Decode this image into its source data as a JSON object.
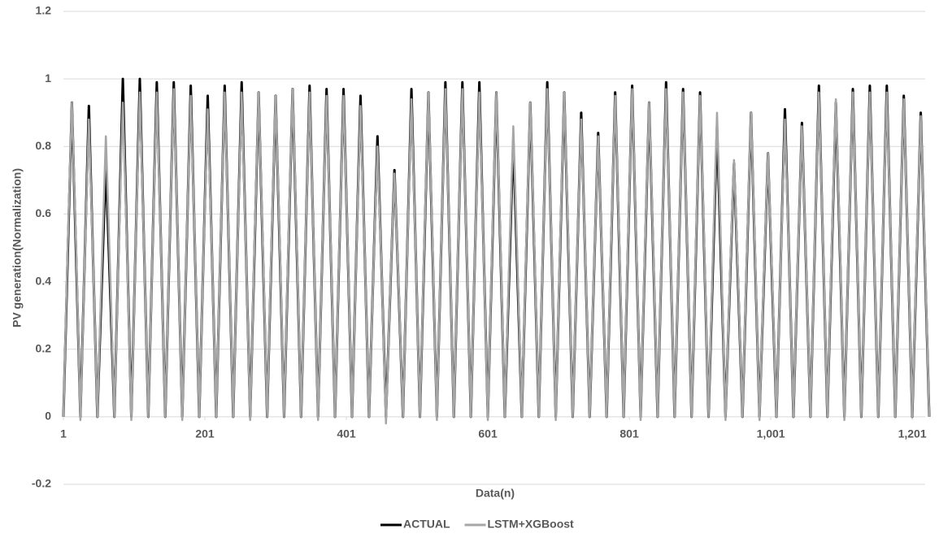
{
  "chart_data": {
    "type": "line",
    "y_label": "PV generation(Normalization)",
    "x_label": "Data(n)",
    "xlim": [
      1,
      1225
    ],
    "xticks": [
      1,
      201,
      401,
      601,
      801,
      {
        "value": 1001,
        "label": "1,001"
      },
      {
        "value": 1201,
        "label": "1,201"
      }
    ],
    "ylim": [
      -0.2,
      1.2
    ],
    "yticks": [
      -0.2,
      0,
      0.2,
      0.4,
      0.6,
      0.8,
      1,
      1.2
    ],
    "grid": true,
    "legend": "bottom",
    "x": [
      1,
      7,
      13,
      19,
      25,
      31,
      37,
      43,
      49,
      55,
      61,
      67,
      73,
      79,
      85,
      91,
      97,
      103,
      109,
      115,
      121,
      127,
      133,
      139,
      145,
      151,
      157,
      163,
      169,
      175,
      181,
      187,
      193,
      199,
      205,
      211,
      217,
      223,
      229,
      235,
      241,
      247,
      253,
      259,
      265,
      271,
      277,
      283,
      289,
      295,
      301,
      307,
      313,
      319,
      325,
      331,
      337,
      343,
      349,
      355,
      361,
      367,
      373,
      379,
      385,
      391,
      397,
      403,
      409,
      415,
      421,
      427,
      433,
      439,
      445,
      451,
      457,
      463,
      469,
      475,
      481,
      487,
      493,
      499,
      505,
      511,
      517,
      523,
      529,
      535,
      541,
      547,
      553,
      559,
      565,
      571,
      577,
      583,
      589,
      595,
      601,
      607,
      613,
      619,
      625,
      631,
      637,
      643,
      649,
      655,
      661,
      667,
      673,
      679,
      685,
      691,
      697,
      703,
      709,
      715,
      721,
      727,
      733,
      739,
      745,
      751,
      757,
      763,
      769,
      775,
      781,
      787,
      793,
      799,
      805,
      811,
      817,
      823,
      829,
      835,
      841,
      847,
      853,
      859,
      865,
      871,
      877,
      883,
      889,
      895,
      901,
      907,
      913,
      919,
      925,
      931,
      937,
      943,
      949,
      955,
      961,
      967,
      973,
      979,
      985,
      991,
      997,
      1003,
      1009,
      1015,
      1021,
      1027,
      1033,
      1039,
      1045,
      1051,
      1057,
      1063,
      1069,
      1075,
      1081,
      1087,
      1093,
      1099,
      1105,
      1111,
      1117,
      1123,
      1129,
      1135,
      1141,
      1147,
      1153,
      1159,
      1165,
      1171,
      1177,
      1183,
      1189,
      1195,
      1201,
      1207,
      1213,
      1219,
      1225
    ],
    "series": [
      {
        "name": "ACTUAL",
        "color": "#000000",
        "values": [
          0,
          0.47,
          0.93,
          0.47,
          0,
          0.46,
          0.92,
          0.46,
          0,
          0.38,
          0.75,
          0.38,
          0,
          0.5,
          1.0,
          0.5,
          0,
          0.5,
          1.0,
          0.5,
          0,
          0.5,
          0.99,
          0.5,
          0,
          0.5,
          0.99,
          0.5,
          0,
          0.49,
          0.98,
          0.49,
          0,
          0.48,
          0.95,
          0.48,
          0,
          0.49,
          0.98,
          0.49,
          0,
          0.5,
          0.99,
          0.5,
          0,
          0.48,
          0.96,
          0.48,
          0,
          0.48,
          0.95,
          0.48,
          0,
          0.49,
          0.97,
          0.49,
          0,
          0.49,
          0.98,
          0.49,
          0,
          0.49,
          0.97,
          0.49,
          0,
          0.49,
          0.97,
          0.49,
          0,
          0.48,
          0.95,
          0.48,
          0,
          0.42,
          0.83,
          0.42,
          0,
          0.37,
          0.73,
          0.37,
          0,
          0.49,
          0.97,
          0.49,
          0,
          0.48,
          0.96,
          0.48,
          0,
          0.5,
          0.99,
          0.5,
          0,
          0.5,
          0.99,
          0.5,
          0,
          0.5,
          0.99,
          0.5,
          0,
          0.48,
          0.96,
          0.48,
          0,
          0.41,
          0.82,
          0.41,
          0,
          0.47,
          0.93,
          0.47,
          0,
          0.5,
          0.99,
          0.5,
          0,
          0.48,
          0.96,
          0.48,
          0,
          0.45,
          0.9,
          0.45,
          0,
          0.42,
          0.84,
          0.42,
          0,
          0.48,
          0.96,
          0.48,
          0,
          0.49,
          0.98,
          0.49,
          0,
          0.47,
          0.93,
          0.47,
          0,
          0.5,
          0.99,
          0.5,
          0,
          0.49,
          0.97,
          0.49,
          0,
          0.48,
          0.96,
          0.48,
          0,
          0.43,
          0.86,
          0.43,
          0,
          0.38,
          0.75,
          0.38,
          0,
          0.45,
          0.9,
          0.45,
          0,
          0.39,
          0.78,
          0.39,
          0,
          0.46,
          0.91,
          0.46,
          0,
          0.44,
          0.87,
          0.44,
          0,
          0.49,
          0.98,
          0.49,
          0,
          0.47,
          0.93,
          0.47,
          0,
          0.49,
          0.97,
          0.49,
          0,
          0.49,
          0.98,
          0.49,
          0,
          0.49,
          0.98,
          0.49,
          0,
          0.48,
          0.95,
          0.48,
          0,
          0.45,
          0.9,
          0.45,
          0
        ]
      },
      {
        "name": "LSTM+XGBoost",
        "color": "#a6a6a6",
        "values": [
          0,
          0.5,
          0.93,
          0.5,
          -0.01,
          0.46,
          0.88,
          0.46,
          0,
          0.43,
          0.83,
          0.43,
          0,
          0.49,
          0.93,
          0.49,
          -0.01,
          0.5,
          0.96,
          0.5,
          0,
          0.5,
          0.96,
          0.5,
          0,
          0.51,
          0.97,
          0.51,
          -0.01,
          0.5,
          0.95,
          0.5,
          0,
          0.48,
          0.91,
          0.48,
          0,
          0.5,
          0.96,
          0.5,
          0,
          0.5,
          0.96,
          0.5,
          -0.01,
          0.5,
          0.96,
          0.5,
          0,
          0.5,
          0.95,
          0.5,
          0,
          0.51,
          0.97,
          0.51,
          0,
          0.5,
          0.96,
          0.5,
          -0.01,
          0.5,
          0.95,
          0.5,
          0,
          0.5,
          0.95,
          0.5,
          0,
          0.48,
          0.92,
          0.48,
          0,
          0.42,
          0.8,
          0.42,
          -0.02,
          0.38,
          0.72,
          0.38,
          0,
          0.49,
          0.94,
          0.49,
          0,
          0.5,
          0.96,
          0.5,
          -0.01,
          0.51,
          0.97,
          0.51,
          0,
          0.51,
          0.97,
          0.51,
          0,
          0.5,
          0.96,
          0.5,
          -0.01,
          0.5,
          0.96,
          0.5,
          0,
          0.45,
          0.86,
          0.45,
          0,
          0.49,
          0.93,
          0.49,
          0,
          0.51,
          0.97,
          0.51,
          -0.01,
          0.5,
          0.96,
          0.5,
          0,
          0.46,
          0.88,
          0.46,
          0,
          0.43,
          0.83,
          0.43,
          0,
          0.5,
          0.95,
          0.5,
          0,
          0.51,
          0.97,
          0.51,
          -0.01,
          0.49,
          0.93,
          0.49,
          0,
          0.51,
          0.97,
          0.51,
          0,
          0.5,
          0.96,
          0.5,
          0,
          0.5,
          0.95,
          0.5,
          0,
          0.47,
          0.9,
          0.47,
          -0.01,
          0.4,
          0.76,
          0.4,
          0,
          0.47,
          0.9,
          0.47,
          -0.01,
          0.41,
          0.78,
          0.41,
          0,
          0.46,
          0.88,
          0.46,
          0,
          0.45,
          0.86,
          0.45,
          0,
          0.5,
          0.96,
          0.5,
          0,
          0.49,
          0.94,
          0.49,
          -0.01,
          0.5,
          0.96,
          0.5,
          0,
          0.5,
          0.96,
          0.5,
          0,
          0.5,
          0.96,
          0.5,
          0,
          0.49,
          0.94,
          0.49,
          0,
          0.47,
          0.89,
          0.47,
          0
        ]
      }
    ]
  }
}
